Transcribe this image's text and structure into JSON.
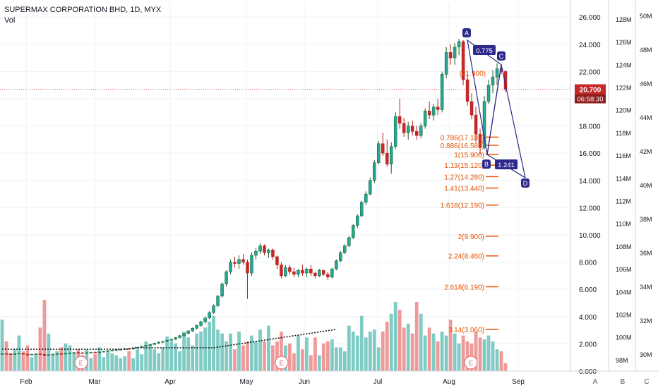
{
  "header": {
    "title": "SUPERMAX CORPORATION BHD, 1D, MYX",
    "volume_label": "Vol"
  },
  "price_tag": {
    "price": "20.700",
    "countdown": "06:58:30"
  },
  "colors": {
    "up": "#26a69a",
    "down": "#c62828",
    "vol_up": "#80cbc4",
    "vol_down": "#ef9a9a",
    "pattern": "#2d2a8c",
    "fib": "#e65100",
    "grid": "#eef0f3"
  },
  "bottom_buttons": [
    "A",
    "B",
    "C"
  ],
  "chart_data": {
    "type": "candlestick",
    "title": "SUPERMAX CORPORATION BHD, 1D, MYX",
    "grid": true,
    "x_ticks": [
      "Feb",
      "Mar",
      "Apr",
      "May",
      "Jun",
      "Jul",
      "Aug",
      "Sep"
    ],
    "price_axis": {
      "ticks": [
        "0.000",
        "2.000",
        "4.000",
        "6.000",
        "8.000",
        "10.000",
        "12.000",
        "14.000",
        "16.000",
        "18.000",
        "20.000",
        "22.000",
        "24.000",
        "26.000"
      ],
      "ylim": [
        0,
        27
      ]
    },
    "volume_axis_1": {
      "ticks": [
        "98M",
        "100M",
        "102M",
        "104M",
        "106M",
        "108M",
        "110M",
        "112M",
        "114M",
        "116M",
        "118M",
        "120M",
        "122M",
        "124M",
        "126M",
        "128M"
      ],
      "ylim": [
        97,
        129
      ]
    },
    "volume_axis_2": {
      "ticks": [
        "30M",
        "32M",
        "34M",
        "36M",
        "38M",
        "40M",
        "42M",
        "44M",
        "46M",
        "48M",
        "50M"
      ],
      "ylim": [
        29,
        50.4
      ]
    },
    "last_price": 20.7,
    "earnings_markers": [
      "E",
      "E",
      "E"
    ],
    "fib_levels": [
      {
        "label": "0.786(17.185)",
        "value": 17.185
      },
      {
        "label": "0.886(16.585)",
        "value": 16.585
      },
      {
        "label": "1(15.900)",
        "value": 15.9
      },
      {
        "label": "1.13(15.120)",
        "value": 15.12
      },
      {
        "label": "1.27(14.280)",
        "value": 14.28
      },
      {
        "label": "1.41(13.440)",
        "value": 13.44
      },
      {
        "label": "1.618(12.190)",
        "value": 12.19
      },
      {
        "label": "2(9.900)",
        "value": 9.9
      },
      {
        "label": "2.24(8.460)",
        "value": 8.46
      },
      {
        "label": "2.618(6.190)",
        "value": 6.19
      },
      {
        "label": "3.14(3.060)",
        "value": 3.06
      },
      {
        "label": "(21.900)",
        "value": 21.9
      }
    ],
    "pattern": {
      "points": [
        {
          "label": "A",
          "price": 24.3
        },
        {
          "label": "B",
          "price": 15.9
        },
        {
          "label": "C",
          "price": 22.5
        },
        {
          "label": "D",
          "price": 14.2
        }
      ],
      "ratios": [
        "0.775",
        "1.241"
      ]
    },
    "candles": [
      [
        1.25,
        1.3,
        1.2,
        1.28
      ],
      [
        1.28,
        1.32,
        1.24,
        1.26
      ],
      [
        1.26,
        1.3,
        1.2,
        1.22
      ],
      [
        1.22,
        1.3,
        1.18,
        1.28
      ],
      [
        1.28,
        1.34,
        1.25,
        1.3
      ],
      [
        1.3,
        1.33,
        1.22,
        1.24
      ],
      [
        1.24,
        1.28,
        1.15,
        1.18
      ],
      [
        1.18,
        1.26,
        1.16,
        1.24
      ],
      [
        1.24,
        1.3,
        1.2,
        1.27
      ],
      [
        1.27,
        1.3,
        1.2,
        1.22
      ],
      [
        1.22,
        1.26,
        1.1,
        1.15
      ],
      [
        1.15,
        1.22,
        1.12,
        1.2
      ],
      [
        1.2,
        1.26,
        1.17,
        1.24
      ],
      [
        1.24,
        1.3,
        1.2,
        1.28
      ],
      [
        1.28,
        1.34,
        1.22,
        1.26
      ],
      [
        1.26,
        1.32,
        1.2,
        1.3
      ],
      [
        1.3,
        1.36,
        1.26,
        1.32
      ],
      [
        1.32,
        1.4,
        1.28,
        1.36
      ],
      [
        1.36,
        1.42,
        1.3,
        1.34
      ],
      [
        1.34,
        1.4,
        1.28,
        1.32
      ],
      [
        1.32,
        1.38,
        1.26,
        1.35
      ],
      [
        1.35,
        1.4,
        1.3,
        1.38
      ],
      [
        1.38,
        1.44,
        1.32,
        1.36
      ],
      [
        1.36,
        1.42,
        1.3,
        1.4
      ],
      [
        1.4,
        1.48,
        1.36,
        1.45
      ],
      [
        1.45,
        1.52,
        1.4,
        1.5
      ],
      [
        1.5,
        1.56,
        1.44,
        1.52
      ],
      [
        1.52,
        1.6,
        1.48,
        1.57
      ],
      [
        1.57,
        1.64,
        1.52,
        1.6
      ],
      [
        1.6,
        1.68,
        1.55,
        1.65
      ],
      [
        1.65,
        1.72,
        1.58,
        1.62
      ],
      [
        1.62,
        1.7,
        1.56,
        1.68
      ],
      [
        1.68,
        1.78,
        1.64,
        1.75
      ],
      [
        1.75,
        1.84,
        1.7,
        1.82
      ],
      [
        1.82,
        1.92,
        1.78,
        1.9
      ],
      [
        1.9,
        2.0,
        1.85,
        1.96
      ],
      [
        1.96,
        2.08,
        1.92,
        2.05
      ],
      [
        2.05,
        2.16,
        2.0,
        2.12
      ],
      [
        2.12,
        2.2,
        2.05,
        2.18
      ],
      [
        2.18,
        2.3,
        2.12,
        2.26
      ],
      [
        2.26,
        2.38,
        2.2,
        2.34
      ],
      [
        2.34,
        2.5,
        2.28,
        2.46
      ],
      [
        2.46,
        2.64,
        2.4,
        2.6
      ],
      [
        2.6,
        2.8,
        2.55,
        2.76
      ],
      [
        2.76,
        3.0,
        2.7,
        2.95
      ],
      [
        2.95,
        3.2,
        2.88,
        3.15
      ],
      [
        3.15,
        3.4,
        3.05,
        3.35
      ],
      [
        3.35,
        3.7,
        3.25,
        3.62
      ],
      [
        3.62,
        4.0,
        3.5,
        3.9
      ],
      [
        3.9,
        4.4,
        3.8,
        4.3
      ],
      [
        4.3,
        4.9,
        4.2,
        4.8
      ],
      [
        4.8,
        5.6,
        4.7,
        5.5
      ],
      [
        5.5,
        6.5,
        5.4,
        6.4
      ],
      [
        6.4,
        7.4,
        6.2,
        7.3
      ],
      [
        7.3,
        8.2,
        7.1,
        8.0
      ],
      [
        8.0,
        8.4,
        7.6,
        7.9
      ],
      [
        7.9,
        8.5,
        7.5,
        8.2
      ],
      [
        8.2,
        8.6,
        7.8,
        8.0
      ],
      [
        8.0,
        8.2,
        5.3,
        7.2
      ],
      [
        7.2,
        8.7,
        7.0,
        8.5
      ],
      [
        8.5,
        9.0,
        8.2,
        8.8
      ],
      [
        8.8,
        9.4,
        8.6,
        9.2
      ],
      [
        9.2,
        9.3,
        8.5,
        8.7
      ],
      [
        8.7,
        9.0,
        8.3,
        8.9
      ],
      [
        8.9,
        9.0,
        8.2,
        8.4
      ],
      [
        8.4,
        8.5,
        7.5,
        7.8
      ],
      [
        7.8,
        8.0,
        6.8,
        7.0
      ],
      [
        7.0,
        7.8,
        6.9,
        7.6
      ],
      [
        7.6,
        7.8,
        7.1,
        7.3
      ],
      [
        7.3,
        7.6,
        6.9,
        7.1
      ],
      [
        7.1,
        7.5,
        6.9,
        7.4
      ],
      [
        7.4,
        7.8,
        7.0,
        7.2
      ],
      [
        7.2,
        7.6,
        6.9,
        7.5
      ],
      [
        7.5,
        7.8,
        7.0,
        7.2
      ],
      [
        7.2,
        7.3,
        6.8,
        7.0
      ],
      [
        7.0,
        7.5,
        6.9,
        7.4
      ],
      [
        7.4,
        7.4,
        7.0,
        7.1
      ],
      [
        7.1,
        7.3,
        6.7,
        6.9
      ],
      [
        6.9,
        7.6,
        6.8,
        7.5
      ],
      [
        7.5,
        8.2,
        7.4,
        8.1
      ],
      [
        8.1,
        8.8,
        8.0,
        8.7
      ],
      [
        8.7,
        9.3,
        8.6,
        9.2
      ],
      [
        9.2,
        9.9,
        9.1,
        9.8
      ],
      [
        9.8,
        10.8,
        9.7,
        10.7
      ],
      [
        10.7,
        11.5,
        10.5,
        11.4
      ],
      [
        11.4,
        12.5,
        11.3,
        12.4
      ],
      [
        12.4,
        13.2,
        12.2,
        13.0
      ],
      [
        13.0,
        14.2,
        12.9,
        14.0
      ],
      [
        14.0,
        15.5,
        13.8,
        15.3
      ],
      [
        15.3,
        16.9,
        15.2,
        16.7
      ],
      [
        16.7,
        17.5,
        15.8,
        16.0
      ],
      [
        16.0,
        17.0,
        15.0,
        15.2
      ],
      [
        15.2,
        16.8,
        14.5,
        16.5
      ],
      [
        16.5,
        19.0,
        16.3,
        18.7
      ],
      [
        18.7,
        20.0,
        17.8,
        18.2
      ],
      [
        18.2,
        18.6,
        17.2,
        17.5
      ],
      [
        17.5,
        18.3,
        17.0,
        18.0
      ],
      [
        18.0,
        18.4,
        17.3,
        17.6
      ],
      [
        17.6,
        18.0,
        17.0,
        17.3
      ],
      [
        17.3,
        18.2,
        17.1,
        18.0
      ],
      [
        18.0,
        19.3,
        17.8,
        19.1
      ],
      [
        19.1,
        19.8,
        18.5,
        18.8
      ],
      [
        18.8,
        19.6,
        18.4,
        19.4
      ],
      [
        19.4,
        20.0,
        18.8,
        19.2
      ],
      [
        19.2,
        22.0,
        19.0,
        21.8
      ],
      [
        21.8,
        23.8,
        21.5,
        23.4
      ],
      [
        23.4,
        24.0,
        22.5,
        23.0
      ],
      [
        23.0,
        24.1,
        22.5,
        23.8
      ],
      [
        23.8,
        24.4,
        23.2,
        24.2
      ],
      [
        24.2,
        24.3,
        21.0,
        21.4
      ],
      [
        21.4,
        21.8,
        19.5,
        19.8
      ],
      [
        19.8,
        20.4,
        18.5,
        18.8
      ],
      [
        18.8,
        19.4,
        16.8,
        17.4
      ],
      [
        17.4,
        17.8,
        15.9,
        16.4
      ],
      [
        16.4,
        20.2,
        16.3,
        19.8
      ],
      [
        19.8,
        21.4,
        19.6,
        21.0
      ],
      [
        21.0,
        22.1,
        20.4,
        21.6
      ],
      [
        21.6,
        22.6,
        21.0,
        22.2
      ],
      [
        22.2,
        22.4,
        21.8,
        22.0
      ],
      [
        22.0,
        22.1,
        20.5,
        20.7
      ]
    ],
    "volume_scale": [
      0.52,
      0.3,
      0.18,
      0.22,
      0.36,
      0.2,
      0.26,
      0.14,
      0.17,
      0.44,
      0.72,
      0.38,
      0.16,
      0.2,
      0.24,
      0.28,
      0.26,
      0.18,
      0.22,
      0.16,
      0.22,
      0.13,
      0.17,
      0.24,
      0.14,
      0.2,
      0.18,
      0.16,
      0.13,
      0.15,
      0.2,
      0.13,
      0.22,
      0.17,
      0.3,
      0.26,
      0.22,
      0.18,
      0.24,
      0.35,
      0.3,
      0.28,
      0.2,
      0.4,
      0.34,
      0.26,
      0.38,
      0.4,
      0.44,
      0.5,
      0.56,
      0.42,
      0.38,
      0.3,
      0.38,
      0.22,
      0.4,
      0.26,
      0.3,
      0.36,
      0.3,
      0.42,
      0.3,
      0.46,
      0.26,
      0.3,
      0.4,
      0.26,
      0.28,
      0.18,
      0.36,
      0.22,
      0.34,
      0.16,
      0.34,
      0.16,
      0.28,
      0.3,
      0.32,
      0.24,
      0.24,
      0.2,
      0.46,
      0.4,
      0.36,
      0.56,
      0.34,
      0.4,
      0.42,
      0.24,
      0.4,
      0.5,
      0.58,
      0.7,
      0.62,
      0.44,
      0.48,
      0.38,
      0.7,
      0.58,
      0.36,
      0.44,
      0.38,
      0.3,
      0.4,
      0.36,
      0.52,
      0.38,
      0.28,
      0.36,
      0.3,
      0.28,
      0.4,
      0.34,
      0.32,
      0.36,
      0.3,
      0.22,
      0.2,
      0.08
    ]
  }
}
